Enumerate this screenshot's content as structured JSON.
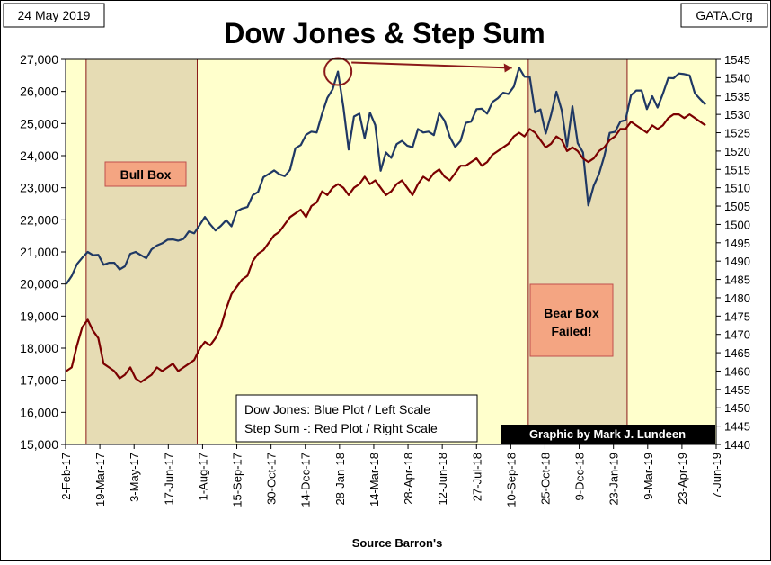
{
  "header": {
    "date": "24 May 2019",
    "source_site": "GATA.Org",
    "title": "Dow Jones & Step Sum"
  },
  "annotations": {
    "bull_box": "Bull Box",
    "bear_box_line1": "Bear Box",
    "bear_box_line2": "Failed!",
    "legend_line1": "Dow Jones: Blue Plot / Left Scale",
    "legend_line2": "Step Sum -: Red Plot / Right Scale",
    "credit": "Graphic by Mark J. Lundeen",
    "source": "Source Barron's"
  },
  "colors": {
    "plot_bg": "#ffffcc",
    "box_fill": "#e6dcb4",
    "box_border": "#8b1a1a",
    "dow": "#1f3864",
    "step": "#7b0000",
    "label_fill": "#f4a582",
    "label_border": "#c0504d",
    "credit_bg": "#000000",
    "credit_text": "#ffffff"
  },
  "chart_data": {
    "type": "line",
    "title": "Dow Jones & Step Sum",
    "x_tick_labels": [
      "2-Feb-17",
      "19-Mar-17",
      "3-May-17",
      "17-Jun-17",
      "1-Aug-17",
      "15-Sep-17",
      "30-Oct-17",
      "14-Dec-17",
      "28-Jan-18",
      "14-Mar-18",
      "28-Apr-18",
      "12-Jun-18",
      "27-Jul-18",
      "10-Sep-18",
      "25-Oct-18",
      "9-Dec-18",
      "23-Jan-19",
      "9-Mar-19",
      "23-Apr-19",
      "7-Jun-19"
    ],
    "x_range": [
      "2017-02-02",
      "2019-06-07"
    ],
    "y_left": {
      "range": [
        15000,
        27000
      ],
      "ticks": [
        "15,000",
        "16,000",
        "17,000",
        "18,000",
        "19,000",
        "20,000",
        "21,000",
        "22,000",
        "23,000",
        "24,000",
        "25,000",
        "26,000",
        "27,000"
      ]
    },
    "y_right": {
      "range": [
        1440,
        1545
      ],
      "ticks": [
        "1440",
        "1445",
        "1450",
        "1455",
        "1460",
        "1465",
        "1470",
        "1475",
        "1480",
        "1485",
        "1490",
        "1495",
        "1500",
        "1505",
        "1510",
        "1515",
        "1520",
        "1525",
        "1530",
        "1535",
        "1540",
        "1545"
      ]
    },
    "grid": false,
    "shaded_regions": [
      {
        "label": "Bull Box",
        "x": [
          "2017-03-01",
          "2017-07-25"
        ]
      },
      {
        "label": "Bear Box Failed!",
        "x": [
          "2018-10-03",
          "2019-02-10"
        ]
      }
    ],
    "series": [
      {
        "name": "Dow Jones",
        "axis": "left",
        "points": [
          [
            "2017-02-03",
            20000
          ],
          [
            "2017-02-10",
            20250
          ],
          [
            "2017-02-17",
            20620
          ],
          [
            "2017-02-24",
            20820
          ],
          [
            "2017-03-03",
            21000
          ],
          [
            "2017-03-10",
            20900
          ],
          [
            "2017-03-17",
            20910
          ],
          [
            "2017-03-24",
            20600
          ],
          [
            "2017-03-31",
            20660
          ],
          [
            "2017-04-07",
            20660
          ],
          [
            "2017-04-14",
            20450
          ],
          [
            "2017-04-21",
            20550
          ],
          [
            "2017-04-28",
            20940
          ],
          [
            "2017-05-05",
            21000
          ],
          [
            "2017-05-12",
            20900
          ],
          [
            "2017-05-19",
            20800
          ],
          [
            "2017-05-26",
            21080
          ],
          [
            "2017-06-02",
            21200
          ],
          [
            "2017-06-09",
            21270
          ],
          [
            "2017-06-16",
            21380
          ],
          [
            "2017-06-23",
            21390
          ],
          [
            "2017-06-30",
            21350
          ],
          [
            "2017-07-07",
            21410
          ],
          [
            "2017-07-14",
            21640
          ],
          [
            "2017-07-21",
            21580
          ],
          [
            "2017-07-28",
            21830
          ],
          [
            "2017-08-04",
            22090
          ],
          [
            "2017-08-11",
            21860
          ],
          [
            "2017-08-18",
            21670
          ],
          [
            "2017-08-25",
            21810
          ],
          [
            "2017-09-01",
            21990
          ],
          [
            "2017-09-08",
            21800
          ],
          [
            "2017-09-15",
            22270
          ],
          [
            "2017-09-22",
            22350
          ],
          [
            "2017-09-29",
            22400
          ],
          [
            "2017-10-06",
            22770
          ],
          [
            "2017-10-13",
            22870
          ],
          [
            "2017-10-20",
            23330
          ],
          [
            "2017-10-27",
            23430
          ],
          [
            "2017-11-03",
            23540
          ],
          [
            "2017-11-10",
            23420
          ],
          [
            "2017-11-17",
            23360
          ],
          [
            "2017-11-24",
            23560
          ],
          [
            "2017-12-01",
            24230
          ],
          [
            "2017-12-08",
            24330
          ],
          [
            "2017-12-15",
            24650
          ],
          [
            "2017-12-22",
            24750
          ],
          [
            "2017-12-29",
            24720
          ],
          [
            "2018-01-05",
            25300
          ],
          [
            "2018-01-12",
            25800
          ],
          [
            "2018-01-19",
            26070
          ],
          [
            "2018-01-26",
            26620
          ],
          [
            "2018-02-02",
            25520
          ],
          [
            "2018-02-09",
            24190
          ],
          [
            "2018-02-16",
            25220
          ],
          [
            "2018-02-23",
            25310
          ],
          [
            "2018-03-02",
            24540
          ],
          [
            "2018-03-09",
            25340
          ],
          [
            "2018-03-16",
            24950
          ],
          [
            "2018-03-23",
            23530
          ],
          [
            "2018-03-30",
            24100
          ],
          [
            "2018-04-06",
            23930
          ],
          [
            "2018-04-13",
            24360
          ],
          [
            "2018-04-20",
            24460
          ],
          [
            "2018-04-27",
            24310
          ],
          [
            "2018-05-04",
            24260
          ],
          [
            "2018-05-11",
            24830
          ],
          [
            "2018-05-18",
            24720
          ],
          [
            "2018-05-25",
            24750
          ],
          [
            "2018-06-01",
            24640
          ],
          [
            "2018-06-08",
            25320
          ],
          [
            "2018-06-15",
            25090
          ],
          [
            "2018-06-22",
            24580
          ],
          [
            "2018-06-29",
            24270
          ],
          [
            "2018-07-06",
            24460
          ],
          [
            "2018-07-13",
            25020
          ],
          [
            "2018-07-20",
            25060
          ],
          [
            "2018-07-27",
            25450
          ],
          [
            "2018-08-03",
            25460
          ],
          [
            "2018-08-10",
            25310
          ],
          [
            "2018-08-17",
            25670
          ],
          [
            "2018-08-24",
            25790
          ],
          [
            "2018-08-31",
            25960
          ],
          [
            "2018-09-07",
            25920
          ],
          [
            "2018-09-14",
            26150
          ],
          [
            "2018-09-21",
            26740
          ],
          [
            "2018-09-28",
            26460
          ],
          [
            "2018-10-05",
            26450
          ],
          [
            "2018-10-12",
            25340
          ],
          [
            "2018-10-19",
            25440
          ],
          [
            "2018-10-26",
            24690
          ],
          [
            "2018-11-02",
            25270
          ],
          [
            "2018-11-09",
            25990
          ],
          [
            "2018-11-16",
            25410
          ],
          [
            "2018-11-23",
            24290
          ],
          [
            "2018-11-30",
            25540
          ],
          [
            "2018-12-07",
            24390
          ],
          [
            "2018-12-14",
            24100
          ],
          [
            "2018-12-21",
            22450
          ],
          [
            "2018-12-28",
            23060
          ],
          [
            "2019-01-04",
            23430
          ],
          [
            "2019-01-11",
            23990
          ],
          [
            "2019-01-18",
            24710
          ],
          [
            "2019-01-25",
            24740
          ],
          [
            "2019-02-01",
            25060
          ],
          [
            "2019-02-08",
            25110
          ],
          [
            "2019-02-15",
            25880
          ],
          [
            "2019-02-22",
            26030
          ],
          [
            "2019-03-01",
            26030
          ],
          [
            "2019-03-08",
            25450
          ],
          [
            "2019-03-15",
            25850
          ],
          [
            "2019-03-22",
            25500
          ],
          [
            "2019-03-29",
            25930
          ],
          [
            "2019-04-05",
            26420
          ],
          [
            "2019-04-12",
            26410
          ],
          [
            "2019-04-19",
            26560
          ],
          [
            "2019-04-26",
            26540
          ],
          [
            "2019-05-03",
            26500
          ],
          [
            "2019-05-10",
            25940
          ],
          [
            "2019-05-17",
            25760
          ],
          [
            "2019-05-24",
            25590
          ]
        ]
      },
      {
        "name": "Step Sum",
        "axis": "right",
        "points": [
          [
            "2017-02-03",
            1460
          ],
          [
            "2017-02-10",
            1461
          ],
          [
            "2017-02-17",
            1467
          ],
          [
            "2017-02-24",
            1472
          ],
          [
            "2017-03-03",
            1474
          ],
          [
            "2017-03-10",
            1471
          ],
          [
            "2017-03-17",
            1469
          ],
          [
            "2017-03-24",
            1462
          ],
          [
            "2017-03-31",
            1461
          ],
          [
            "2017-04-07",
            1460
          ],
          [
            "2017-04-14",
            1458
          ],
          [
            "2017-04-21",
            1459
          ],
          [
            "2017-04-28",
            1461
          ],
          [
            "2017-05-05",
            1458
          ],
          [
            "2017-05-12",
            1457
          ],
          [
            "2017-05-19",
            1458
          ],
          [
            "2017-05-26",
            1459
          ],
          [
            "2017-06-02",
            1461
          ],
          [
            "2017-06-09",
            1460
          ],
          [
            "2017-06-16",
            1461
          ],
          [
            "2017-06-23",
            1462
          ],
          [
            "2017-06-30",
            1460
          ],
          [
            "2017-07-07",
            1461
          ],
          [
            "2017-07-14",
            1462
          ],
          [
            "2017-07-21",
            1463
          ],
          [
            "2017-07-28",
            1466
          ],
          [
            "2017-08-04",
            1468
          ],
          [
            "2017-08-11",
            1467
          ],
          [
            "2017-08-18",
            1469
          ],
          [
            "2017-08-25",
            1472
          ],
          [
            "2017-09-01",
            1477
          ],
          [
            "2017-09-08",
            1481
          ],
          [
            "2017-09-15",
            1483
          ],
          [
            "2017-09-22",
            1485
          ],
          [
            "2017-09-29",
            1486
          ],
          [
            "2017-10-06",
            1490
          ],
          [
            "2017-10-13",
            1492
          ],
          [
            "2017-10-20",
            1493
          ],
          [
            "2017-10-27",
            1495
          ],
          [
            "2017-11-03",
            1497
          ],
          [
            "2017-11-10",
            1498
          ],
          [
            "2017-11-17",
            1500
          ],
          [
            "2017-11-24",
            1502
          ],
          [
            "2017-12-01",
            1503
          ],
          [
            "2017-12-08",
            1504
          ],
          [
            "2017-12-15",
            1502
          ],
          [
            "2017-12-22",
            1505
          ],
          [
            "2017-12-29",
            1506
          ],
          [
            "2018-01-05",
            1509
          ],
          [
            "2018-01-12",
            1508
          ],
          [
            "2018-01-19",
            1510
          ],
          [
            "2018-01-26",
            1511
          ],
          [
            "2018-02-02",
            1510
          ],
          [
            "2018-02-09",
            1508
          ],
          [
            "2018-02-16",
            1510
          ],
          [
            "2018-02-23",
            1511
          ],
          [
            "2018-03-02",
            1513
          ],
          [
            "2018-03-09",
            1511
          ],
          [
            "2018-03-16",
            1512
          ],
          [
            "2018-03-23",
            1510
          ],
          [
            "2018-03-30",
            1508
          ],
          [
            "2018-04-06",
            1509
          ],
          [
            "2018-04-13",
            1511
          ],
          [
            "2018-04-20",
            1512
          ],
          [
            "2018-04-27",
            1510
          ],
          [
            "2018-05-04",
            1508
          ],
          [
            "2018-05-11",
            1511
          ],
          [
            "2018-05-18",
            1513
          ],
          [
            "2018-05-25",
            1512
          ],
          [
            "2018-06-01",
            1514
          ],
          [
            "2018-06-08",
            1515
          ],
          [
            "2018-06-15",
            1513
          ],
          [
            "2018-06-22",
            1512
          ],
          [
            "2018-06-29",
            1514
          ],
          [
            "2018-07-06",
            1516
          ],
          [
            "2018-07-13",
            1516
          ],
          [
            "2018-07-20",
            1517
          ],
          [
            "2018-07-27",
            1518
          ],
          [
            "2018-08-03",
            1516
          ],
          [
            "2018-08-10",
            1517
          ],
          [
            "2018-08-17",
            1519
          ],
          [
            "2018-08-24",
            1520
          ],
          [
            "2018-08-31",
            1521
          ],
          [
            "2018-09-07",
            1522
          ],
          [
            "2018-09-14",
            1524
          ],
          [
            "2018-09-21",
            1525
          ],
          [
            "2018-09-28",
            1524
          ],
          [
            "2018-10-05",
            1526
          ],
          [
            "2018-10-12",
            1525
          ],
          [
            "2018-10-19",
            1523
          ],
          [
            "2018-10-26",
            1521
          ],
          [
            "2018-11-02",
            1522
          ],
          [
            "2018-11-09",
            1524
          ],
          [
            "2018-11-16",
            1523
          ],
          [
            "2018-11-23",
            1520
          ],
          [
            "2018-11-30",
            1521
          ],
          [
            "2018-12-07",
            1520
          ],
          [
            "2018-12-14",
            1518
          ],
          [
            "2018-12-21",
            1517
          ],
          [
            "2018-12-28",
            1518
          ],
          [
            "2019-01-04",
            1520
          ],
          [
            "2019-01-11",
            1521
          ],
          [
            "2019-01-18",
            1523
          ],
          [
            "2019-01-25",
            1524
          ],
          [
            "2019-02-01",
            1526
          ],
          [
            "2019-02-08",
            1526
          ],
          [
            "2019-02-15",
            1528
          ],
          [
            "2019-02-22",
            1527
          ],
          [
            "2019-03-01",
            1526
          ],
          [
            "2019-03-08",
            1525
          ],
          [
            "2019-03-15",
            1527
          ],
          [
            "2019-03-22",
            1526
          ],
          [
            "2019-03-29",
            1527
          ],
          [
            "2019-04-05",
            1529
          ],
          [
            "2019-04-12",
            1530
          ],
          [
            "2019-04-19",
            1530
          ],
          [
            "2019-04-26",
            1529
          ],
          [
            "2019-05-03",
            1530
          ],
          [
            "2019-05-10",
            1529
          ],
          [
            "2019-05-17",
            1528
          ],
          [
            "2019-05-24",
            1527
          ]
        ]
      }
    ]
  }
}
